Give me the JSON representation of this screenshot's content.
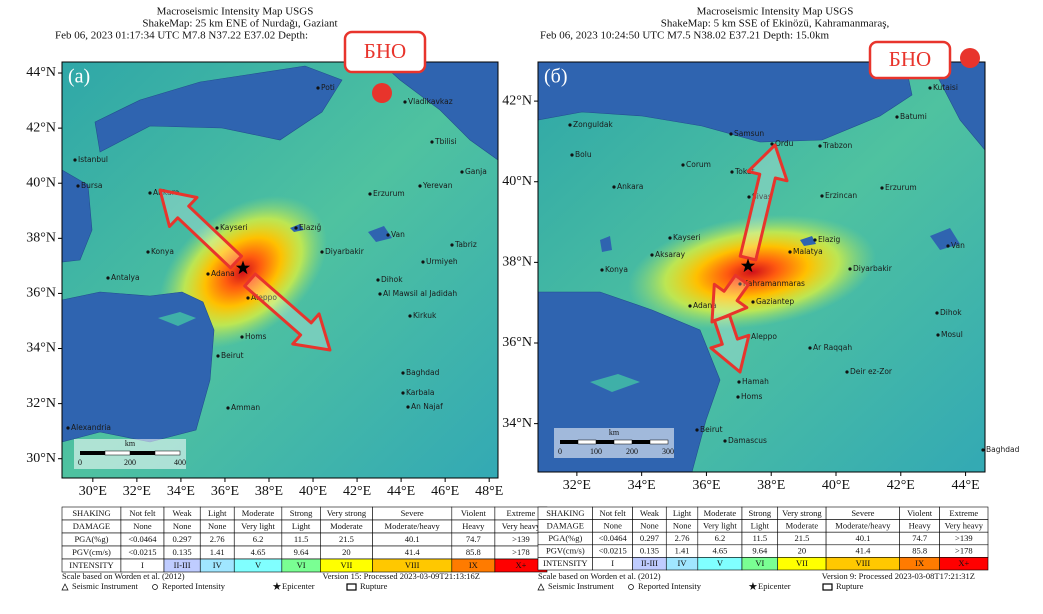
{
  "panels": [
    {
      "label": "(а)",
      "badge": "БНО",
      "title": [
        "Macroseismic Intensity Map USGS",
        "ShakeMap: 25 km ENE of Nurdağı, Gaziant",
        "Feb 06, 2023 01:17:34 UTC M7.8 N37.22 E37.02 Depth:"
      ],
      "xlim": [
        28.6,
        48.4
      ],
      "ylim": [
        29.3,
        44.4
      ],
      "yticks": [
        {
          "value": 30,
          "label": "30°N"
        },
        {
          "value": 32,
          "label": "32°N"
        },
        {
          "value": 34,
          "label": "34°N"
        },
        {
          "value": 36,
          "label": "36°N"
        },
        {
          "value": 38,
          "label": "38°N"
        },
        {
          "value": 40,
          "label": "40°N"
        },
        {
          "value": 42,
          "label": "42°N"
        },
        {
          "value": 44,
          "label": "44°N"
        }
      ],
      "xticks": [
        {
          "value": 30,
          "label": "30°E"
        },
        {
          "value": 32,
          "label": "32°E"
        },
        {
          "value": 34,
          "label": "34°E"
        },
        {
          "value": 36,
          "label": "36°E"
        },
        {
          "value": 38,
          "label": "38°E"
        },
        {
          "value": 40,
          "label": "40°E"
        },
        {
          "value": 42,
          "label": "42°E"
        },
        {
          "value": 44,
          "label": "44°E"
        },
        {
          "value": 46,
          "label": "46°E"
        },
        {
          "value": 48,
          "label": "48°E"
        }
      ],
      "cities": [
        "Poti",
        "Vladikavkaz",
        "Tbilisi",
        "Ganja",
        "Yerevan",
        "Istanbul",
        "Bursa",
        "Ankara",
        "Erzurum",
        "Kayseri",
        "Elazığ",
        "Van",
        "Tabriz",
        "Konya",
        "Diyarbakir",
        "Urmiyeh",
        "Adana",
        "Antalya",
        "Dihok",
        "Aleppo",
        "Al Mawsil al Jadidah",
        "Kirkuk",
        "Homs",
        "Beirut",
        "Baghdad",
        "Karbala",
        "Amman",
        "An Najaf",
        "Alexandria"
      ],
      "scale": {
        "unit": "km",
        "ticks": [
          0,
          200,
          400
        ]
      },
      "table": {
        "rows": [
          [
            "SHAKING",
            "Not felt",
            "Weak",
            "Light",
            "Moderate",
            "Strong",
            "Very strong",
            "Severe",
            "Violent",
            "Extreme"
          ],
          [
            "DAMAGE",
            "None",
            "None",
            "None",
            "Very light",
            "Light",
            "Moderate",
            "Moderate/heavy",
            "Heavy",
            "Very heavy"
          ],
          [
            "PGA(%g)",
            "<0.0464",
            "0.297",
            "2.76",
            "6.2",
            "11.5",
            "21.5",
            "40.1",
            "74.7",
            ">139"
          ],
          [
            "PGV(cm/s)",
            "<0.0215",
            "0.135",
            "1.41",
            "4.65",
            "9.64",
            "20",
            "41.4",
            "85.8",
            ">178"
          ],
          [
            "INTENSITY",
            "I",
            "II-III",
            "IV",
            "V",
            "VI",
            "VII",
            "VIII",
            "IX",
            "X+"
          ]
        ]
      },
      "footer": {
        "note": "Scale based on Worden et al. (2012)",
        "version": "Version 15: Processed 2023-03-09T21:13:16Z",
        "legend": [
          "Seismic Instrument",
          "Reported Intensity",
          "Epicenter",
          "Rupture"
        ]
      }
    },
    {
      "label": "(б)",
      "badge": "БНО",
      "title": [
        "Macroseismic Intensity Map USGS",
        "ShakeMap: 5 km SSE of Ekinözü, Kahramanmaraş,",
        "Feb 06, 2023 10:24:50 UTC M7.5 N38.02 E37.21 Depth: 15.0km"
      ],
      "xlim": [
        30.8,
        44.6
      ],
      "ylim": [
        32.8,
        42.97
      ],
      "yticks": [
        {
          "value": 34,
          "label": "34°N"
        },
        {
          "value": 36,
          "label": "36°N"
        },
        {
          "value": 38,
          "label": "38°N"
        },
        {
          "value": 40,
          "label": "40°N"
        },
        {
          "value": 42,
          "label": "42°N"
        }
      ],
      "xticks": [
        {
          "value": 32,
          "label": "32°E"
        },
        {
          "value": 34,
          "label": "34°E"
        },
        {
          "value": 36,
          "label": "36°E"
        },
        {
          "value": 38,
          "label": "38°E"
        },
        {
          "value": 40,
          "label": "40°E"
        },
        {
          "value": 42,
          "label": "42°E"
        },
        {
          "value": 44,
          "label": "44°E"
        }
      ],
      "cities": [
        "Kutaisi",
        "Batumi",
        "Zonguldak",
        "Samsun",
        "Ordu",
        "Trabzon",
        "Bolu",
        "Corum",
        "Tokat",
        "Ankara",
        "Erzincan",
        "Erzurum",
        "Sivas",
        "Kayseri",
        "Elazig",
        "Van",
        "Aksaray",
        "Malatya",
        "Diyarbakir",
        "Konya",
        "Kahramanmaras",
        "Gaziantep",
        "Dihok",
        "Adana",
        "Mosul",
        "Aleppo",
        "Ar Raqqah",
        "Hamah",
        "Deir ez-Zor",
        "Homs",
        "Beirut",
        "Damascus",
        "Baghdad"
      ],
      "scale": {
        "unit": "km",
        "ticks": [
          0,
          100,
          200,
          300
        ]
      },
      "table": {
        "rows": [
          [
            "SHAKING",
            "Not felt",
            "Weak",
            "Light",
            "Moderate",
            "Strong",
            "Very strong",
            "Severe",
            "Violent",
            "Extreme"
          ],
          [
            "DAMAGE",
            "None",
            "None",
            "None",
            "Very light",
            "Light",
            "Moderate",
            "Moderate/heavy",
            "Heavy",
            "Very heavy"
          ],
          [
            "PGA(%g)",
            "<0.0464",
            "0.297",
            "2.76",
            "6.2",
            "11.5",
            "21.5",
            "40.1",
            "74.7",
            ">139"
          ],
          [
            "PGV(cm/s)",
            "<0.0215",
            "0.135",
            "1.41",
            "4.65",
            "9.64",
            "20",
            "41.4",
            "85.8",
            ">178"
          ],
          [
            "INTENSITY",
            "I",
            "II-III",
            "IV",
            "V",
            "VI",
            "VII",
            "VIII",
            "IX",
            "X+"
          ]
        ]
      },
      "footer": {
        "note": "Scale based on Worden et al. (2012)",
        "version": "Version 9: Processed 2023-03-08T17:21:31Z",
        "legend": [
          "Seismic Instrument",
          "Reported Intensity",
          "Epicenter",
          "Rupture"
        ]
      }
    }
  ]
}
